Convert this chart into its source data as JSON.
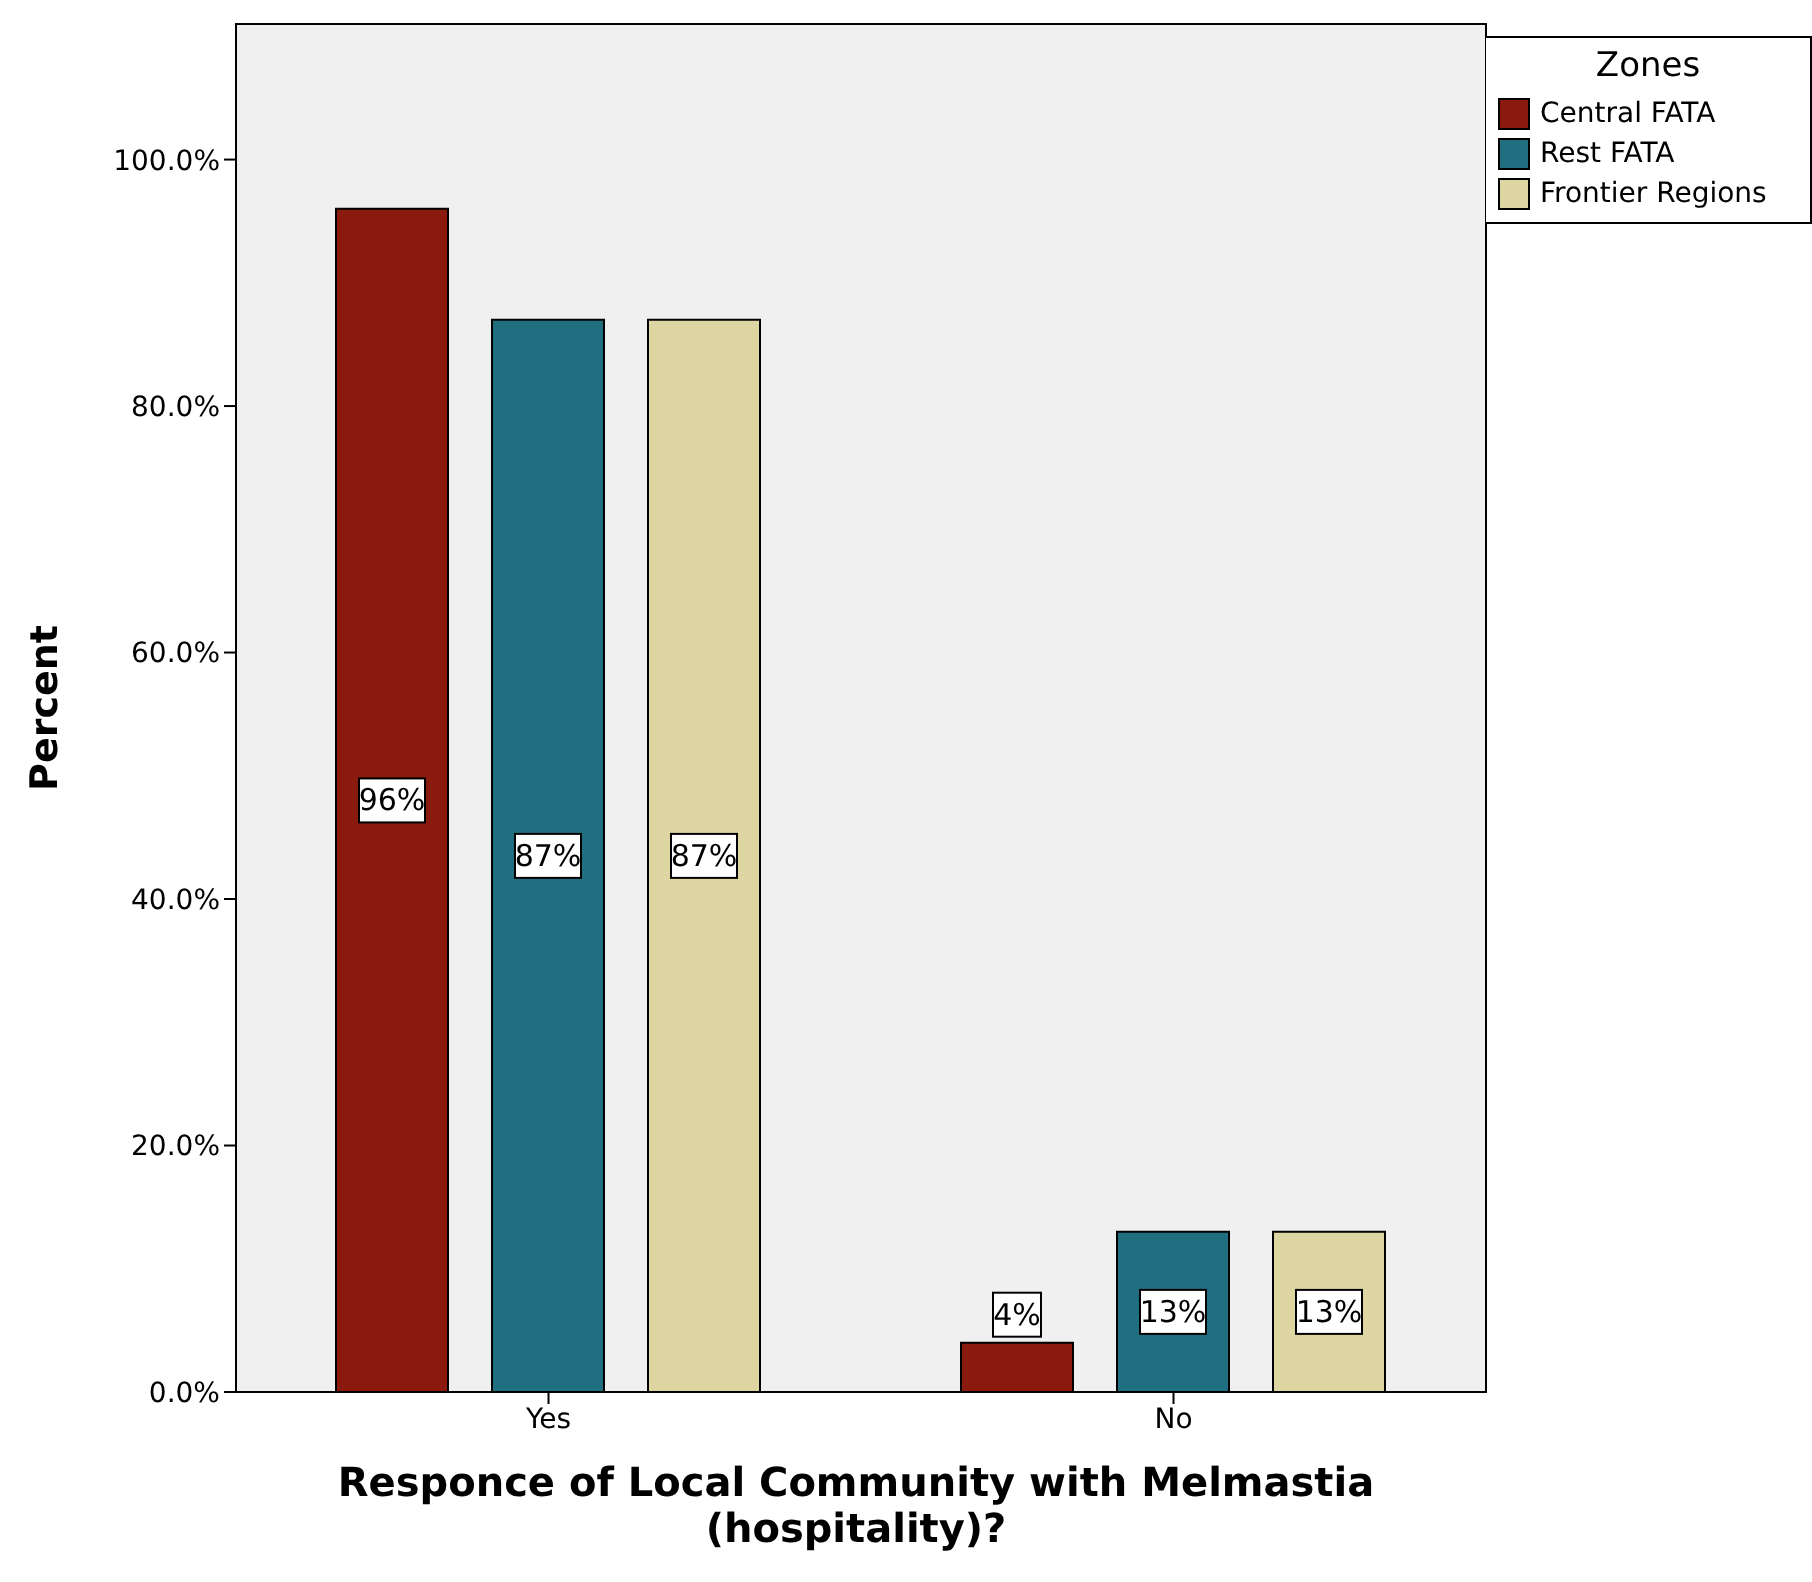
{
  "chart_data": {
    "type": "bar",
    "xlabel": "Responce of Local Community with Melmastia (hospitality)?",
    "ylabel": "Percent",
    "legend_title": "Zones",
    "categories": [
      "Yes",
      "No"
    ],
    "series": [
      {
        "name": "Central FATA",
        "color": "#8b1a0e",
        "values": [
          96,
          4
        ],
        "value_labels": [
          "96%",
          "4%"
        ]
      },
      {
        "name": "Rest FATA",
        "color": "#1f6f80",
        "values": [
          87,
          13
        ],
        "value_labels": [
          "87%",
          "13%"
        ]
      },
      {
        "name": "Frontier Regions",
        "color": "#ddd6a3",
        "values": [
          87,
          13
        ],
        "value_labels": [
          "87%",
          "13%"
        ]
      }
    ],
    "ylim": [
      0,
      111
    ],
    "yticks": [
      {
        "value": 0,
        "label": "0.0%"
      },
      {
        "value": 20,
        "label": "20.0%"
      },
      {
        "value": 40,
        "label": "40.0%"
      },
      {
        "value": 60,
        "label": "60.0%"
      },
      {
        "value": 80,
        "label": "80.0%"
      },
      {
        "value": 100,
        "label": "100.0%"
      }
    ],
    "legend": "top right"
  }
}
